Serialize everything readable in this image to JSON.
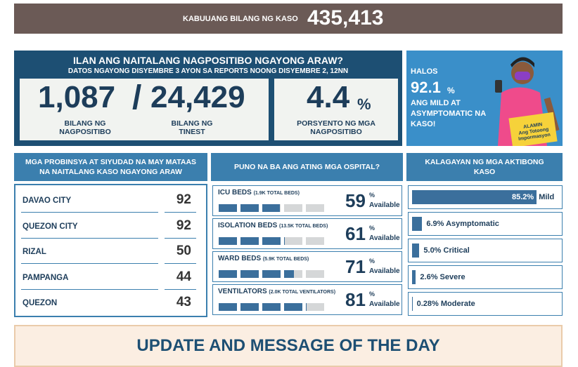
{
  "total": {
    "label": "KABUUANG BILANG NG KASO",
    "value": "435,413"
  },
  "today": {
    "title": "ILAN ANG NAITALANG NAGPOSITIBO NGAYONG ARAW?",
    "subtitle": "DATOS NGAYONG DISYEMBRE 3 AYON SA REPORTS NOONG DISYEMBRE 2, 12NN",
    "positive": {
      "value": "1,087",
      "label": "BILANG NG NAGPOSITIBO"
    },
    "separator": "/",
    "tested": {
      "value": "24,429",
      "label": "BILANG NG TINEST"
    },
    "rate": {
      "value": "4.4",
      "unit": "%",
      "label": "PORSYENTO NG MGA NAGPOSITIBO"
    }
  },
  "banner": {
    "lead": "HALOS",
    "value": "92.1",
    "unit": "%",
    "text": "ANG MILD AT ASYMPTOMATIC NA KASO!",
    "logo": [
      "ALAMIN",
      "Ang Totoong",
      "Impormasyon"
    ]
  },
  "provinces": {
    "title": "MGA PROBINSYA AT SIYUDAD NA MAY MATAAS NA NAITALANG KASO NGAYONG ARAW",
    "rows": [
      [
        "DAVAO CITY",
        92
      ],
      [
        "QUEZON CITY",
        92
      ],
      [
        "RIZAL",
        50
      ],
      [
        "PAMPANGA",
        44
      ],
      [
        "QUEZON",
        43
      ]
    ]
  },
  "hospitals": {
    "title": "PUNO NA BA ANG ATING MGA OSPITAL?",
    "items": [
      {
        "name": "ICU BEDS",
        "note": "(1.9K TOTAL BEDS)",
        "percent": 59,
        "unit": "%",
        "status": "Available"
      },
      {
        "name": "ISOLATION BEDS",
        "note": "(13.5K TOTAL BEDS)",
        "percent": 61,
        "unit": "%",
        "status": "Available"
      },
      {
        "name": "WARD BEDS",
        "note": "(5.9K TOTAL BEDS)",
        "percent": 71,
        "unit": "%",
        "status": "Available"
      },
      {
        "name": "VENTILATORS",
        "note": "(2.0K TOTAL VENTILATORS)",
        "percent": 81,
        "unit": "%",
        "status": "Available"
      }
    ]
  },
  "status": {
    "title": "KALAGAYAN NG MGA AKTIBONG KASO",
    "items": [
      {
        "value": 85.2,
        "value_label": "85.2%",
        "name": "Mild"
      },
      {
        "value": 6.9,
        "value_label": "6.9%",
        "name": "Asymptomatic"
      },
      {
        "value": 5.0,
        "value_label": "5.0%",
        "name": "Critical"
      },
      {
        "value": 2.6,
        "value_label": "2.6%",
        "name": "Severe"
      },
      {
        "value": 0.28,
        "value_label": "0.28%",
        "name": "Moderate"
      }
    ]
  },
  "footer": {
    "title": "UPDATE AND MESSAGE OF THE DAY"
  }
}
